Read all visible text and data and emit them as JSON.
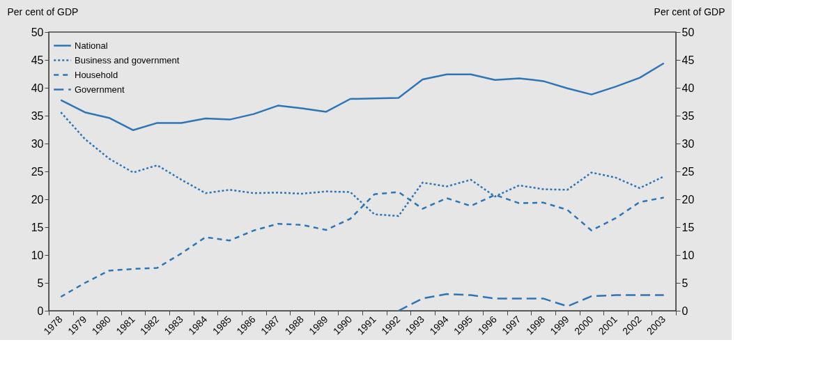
{
  "chart_data": {
    "type": "line",
    "ylabel": "Per cent of GDP",
    "y2label": "Per cent of GDP",
    "categories": [
      "1978",
      "1979",
      "1980",
      "1981",
      "1982",
      "1983",
      "1984",
      "1985",
      "1986",
      "1987",
      "1988",
      "1989",
      "1990",
      "1991",
      "1992",
      "1993",
      "1994",
      "1995",
      "1996",
      "1997",
      "1998",
      "1999",
      "2000",
      "2001",
      "2002",
      "2003"
    ],
    "series": [
      {
        "name": "National",
        "color": "#2e75b6",
        "line_style": "solid",
        "values": [
          37.8,
          35.6,
          34.6,
          32.4,
          33.7,
          33.7,
          34.5,
          34.3,
          35.3,
          36.8,
          36.3,
          35.7,
          38.0,
          38.1,
          38.2,
          41.5,
          42.4,
          42.4,
          41.4,
          41.7,
          41.2,
          39.9,
          38.8,
          40.2,
          41.8,
          44.4
        ]
      },
      {
        "name": "Business and government",
        "color": "#2e75b6",
        "line_style": "dotted",
        "values": [
          35.6,
          30.8,
          27.3,
          24.8,
          26.1,
          23.5,
          21.1,
          21.7,
          21.1,
          21.2,
          21.0,
          21.4,
          21.3,
          17.3,
          17.0,
          23.0,
          22.3,
          23.5,
          20.5,
          22.5,
          21.8,
          21.7,
          24.8,
          23.9,
          22.0,
          24.1
        ]
      },
      {
        "name": "Household",
        "color": "#2e75b6",
        "line_style": "dashed",
        "values": [
          2.5,
          5.0,
          7.2,
          7.5,
          7.7,
          10.3,
          13.2,
          12.6,
          14.4,
          15.6,
          15.4,
          14.5,
          16.5,
          20.9,
          21.3,
          18.3,
          20.2,
          18.8,
          20.8,
          19.3,
          19.4,
          18.1,
          14.4,
          16.6,
          19.5,
          20.3
        ]
      },
      {
        "name": "Government",
        "color": "#2e75b6",
        "line_style": "longdash",
        "values": [
          null,
          null,
          null,
          null,
          null,
          null,
          null,
          null,
          null,
          null,
          null,
          null,
          null,
          null,
          0.0,
          2.2,
          3.0,
          2.8,
          2.2,
          2.2,
          2.2,
          0.8,
          2.6,
          2.8,
          2.8,
          2.8
        ]
      }
    ],
    "ylim": [
      0,
      50
    ],
    "yticks": [
      0,
      5,
      10,
      15,
      20,
      25,
      30,
      35,
      40,
      45,
      50
    ],
    "y2lim": [
      0,
      50
    ],
    "y2ticks": [
      0,
      5,
      10,
      15,
      20,
      25,
      30,
      35,
      40,
      45,
      50
    ],
    "grid": false,
    "legend": "top left",
    "marker": "none"
  }
}
